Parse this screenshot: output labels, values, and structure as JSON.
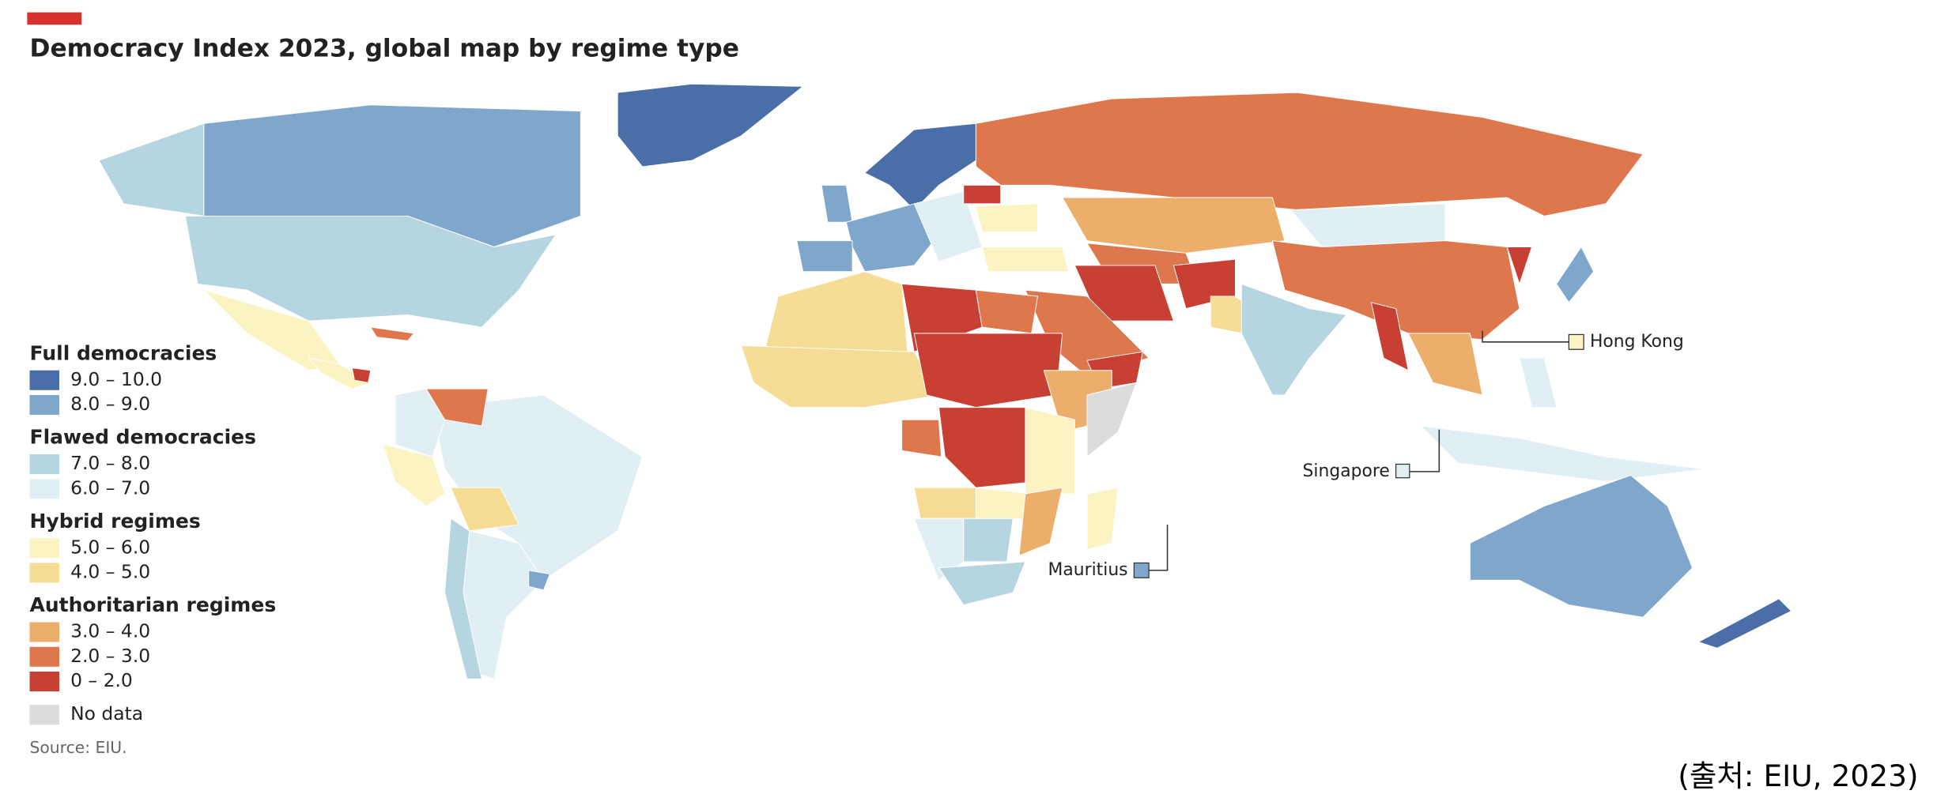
{
  "header": {
    "title": "Democracy Index 2023, global map by regime type"
  },
  "legend": {
    "groups": [
      {
        "name": "Full democracies",
        "items": [
          {
            "label": "9.0 – 10.0",
            "color": "#4a6fa8"
          },
          {
            "label": "8.0 – 9.0",
            "color": "#7ea7cb"
          }
        ]
      },
      {
        "name": "Flawed democracies",
        "items": [
          {
            "label": "7.0 – 8.0",
            "color": "#b5d6e1"
          },
          {
            "label": "6.0 – 7.0",
            "color": "#e0eff4"
          }
        ]
      },
      {
        "name": "Hybrid regimes",
        "items": [
          {
            "label": "5.0 – 6.0",
            "color": "#fbf4c2"
          },
          {
            "label": "4.0 – 5.0",
            "color": "#f6dc94"
          }
        ]
      },
      {
        "name": "Authoritarian regimes",
        "items": [
          {
            "label": "3.0 – 4.0",
            "color": "#ebae6b"
          },
          {
            "label": "2.0 – 3.0",
            "color": "#df774d"
          },
          {
            "label": "0 – 2.0",
            "color": "#c83f34"
          }
        ]
      }
    ],
    "no_data": {
      "label": "No data",
      "color": "#dcdcdc"
    }
  },
  "callouts": [
    {
      "label": "Hong Kong"
    },
    {
      "label": "Singapore"
    },
    {
      "label": "Mauritius"
    }
  ],
  "source": "Source: EIU.",
  "caption": "(출처: EIU, 2023)"
}
